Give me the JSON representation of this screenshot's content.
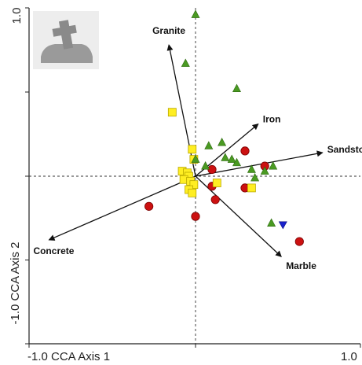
{
  "chart_data": {
    "type": "scatter",
    "title": "",
    "xlabel": "CCA Axis 1",
    "ylabel": "CCA Axis 2",
    "xlim": [
      -1.0,
      1.0
    ],
    "ylim": [
      -1.0,
      1.0
    ],
    "x_tick_labels": {
      "min": "-1.0",
      "max": "1.0"
    },
    "y_tick_labels": {
      "min": "-1.0",
      "max": "1.0"
    },
    "axis_title_x": "-1.0 CCA Axis 1",
    "axis_title_y": "-1.0 CCA Axis 2",
    "grid": false,
    "zero_lines": "dashed",
    "inset_icon": "tombstone-icon",
    "colors": {
      "circle": "#cc1111",
      "square": "#ffee22",
      "triangle": "#4a9a22",
      "inverted_triangle": "#1a22cc",
      "arrow": "#111111"
    },
    "arrows": [
      {
        "label": "Granite",
        "x": -0.16,
        "y": 0.78
      },
      {
        "label": "Iron",
        "x": 0.38,
        "y": 0.31
      },
      {
        "label": "Sandstone",
        "x": 0.77,
        "y": 0.14
      },
      {
        "label": "Marble",
        "x": 0.52,
        "y": -0.48
      },
      {
        "label": "Concrete",
        "x": -0.88,
        "y": -0.38
      }
    ],
    "series": [
      {
        "marker": "circle",
        "points": [
          [
            -0.28,
            -0.18
          ],
          [
            0.0,
            -0.24
          ],
          [
            0.1,
            0.04
          ],
          [
            0.1,
            -0.06
          ],
          [
            0.12,
            -0.14
          ],
          [
            0.3,
            0.15
          ],
          [
            0.3,
            -0.07
          ],
          [
            0.42,
            0.06
          ],
          [
            0.63,
            -0.39
          ]
        ]
      },
      {
        "marker": "square",
        "points": [
          [
            -0.14,
            0.38
          ],
          [
            -0.02,
            0.16
          ],
          [
            -0.01,
            0.1
          ],
          [
            -0.08,
            0.03
          ],
          [
            -0.05,
            0.02
          ],
          [
            -0.04,
            0.0
          ],
          [
            -0.07,
            -0.02
          ],
          [
            -0.03,
            -0.03
          ],
          [
            -0.01,
            -0.05
          ],
          [
            -0.04,
            -0.08
          ],
          [
            -0.02,
            -0.1
          ],
          [
            0.13,
            -0.04
          ],
          [
            0.34,
            -0.07
          ]
        ]
      },
      {
        "marker": "triangle",
        "points": [
          [
            0.0,
            0.96
          ],
          [
            -0.06,
            0.67
          ],
          [
            0.25,
            0.52
          ],
          [
            0.16,
            0.2
          ],
          [
            0.08,
            0.18
          ],
          [
            0.0,
            0.1
          ],
          [
            0.18,
            0.11
          ],
          [
            0.22,
            0.1
          ],
          [
            0.25,
            0.08
          ],
          [
            0.34,
            0.04
          ],
          [
            0.42,
            0.03
          ],
          [
            0.47,
            0.06
          ],
          [
            0.06,
            0.06
          ],
          [
            0.36,
            -0.01
          ],
          [
            0.46,
            -0.28
          ]
        ]
      },
      {
        "marker": "inverted_triangle",
        "points": [
          [
            0.53,
            -0.29
          ]
        ]
      }
    ]
  }
}
